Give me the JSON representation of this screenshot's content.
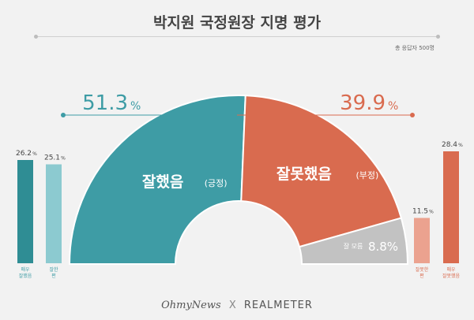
{
  "chart_data": {
    "type": "pie",
    "title": "박지원 국정원장 지명 평가",
    "note": "총 응답자 500명",
    "center": [
      {
        "name": "잘했음",
        "sub": "(긍정)",
        "value": 51.3,
        "color": "#3e9ca5"
      },
      {
        "name": "잘못했음",
        "sub": "(부정)",
        "value": 39.9,
        "color": "#d96b4f"
      },
      {
        "name": "잘 모름",
        "sub": "",
        "value": 8.8,
        "color": "#c2c2c2"
      }
    ],
    "bars_left": [
      {
        "label1": "매우",
        "label2": "잘했음",
        "value": 26.2,
        "color": "#2f8d94"
      },
      {
        "label1": "잘한",
        "label2": "편",
        "value": 25.1,
        "color": "#8ccad0"
      }
    ],
    "bars_right": [
      {
        "label1": "잘못한",
        "label2": "편",
        "value": 11.5,
        "color": "#eba28f"
      },
      {
        "label1": "매우",
        "label2": "잘못했음",
        "value": 28.4,
        "color": "#d96b4f"
      }
    ],
    "pct_unit": "%"
  },
  "footer": {
    "brand1": "OhmyNews",
    "sep": "X",
    "brand2": "REALMETER"
  }
}
